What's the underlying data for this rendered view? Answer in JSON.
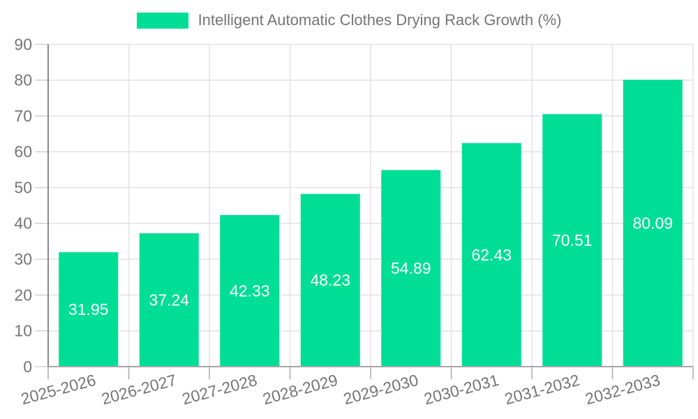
{
  "chart_data": {
    "type": "bar",
    "title": "Intelligent Automatic Clothes Drying Rack Growth (%)",
    "categories": [
      "2025-2026",
      "2026-2027",
      "2027-2028",
      "2028-2029",
      "2029-2030",
      "2030-2031",
      "2031-2032",
      "2032-2033"
    ],
    "values": [
      31.95,
      37.24,
      42.33,
      48.23,
      54.89,
      62.43,
      70.51,
      80.09
    ],
    "xlabel": "",
    "ylabel": "",
    "ylim": [
      0,
      90
    ],
    "ytick_step": 10,
    "grid": true,
    "legend_position": "top-center",
    "x_tick_rotation_deg": -15,
    "value_label_position": "inside-center",
    "colors": {
      "bar": "#00DE95",
      "value_label": "#FFFFFF",
      "axis_text": "#757575",
      "grid_line": "#E2E2E2",
      "y_tick_line": "#D0D0D0",
      "x_tick_line": "#AAAAAA",
      "y_axis_line": "#888888",
      "x_axis_line": "#A6A6A6",
      "background": "#FFFFFF"
    }
  }
}
